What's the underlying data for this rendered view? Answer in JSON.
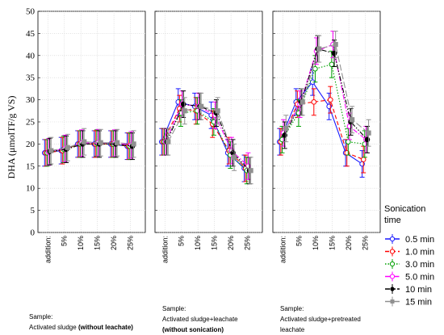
{
  "chart_data": {
    "type": "line",
    "ylabel": "DHA (μmolTF/g VS)",
    "ylim": [
      0,
      50
    ],
    "yticks": [
      0,
      5,
      10,
      15,
      20,
      25,
      30,
      35,
      40,
      45,
      50
    ],
    "categories": [
      "addition:",
      "5%",
      "10%",
      "15%",
      "20%",
      "25%"
    ],
    "grid": true,
    "legend": {
      "title": "Sonication time",
      "placement": "right"
    },
    "series_style": [
      {
        "name": "0.5 min",
        "color": "#1a1aff",
        "dash": "solid",
        "marker": "open-circle"
      },
      {
        "name": "1.0 min",
        "color": "#ff0000",
        "dash": "dashed",
        "marker": "open-circle"
      },
      {
        "name": "3.0 min",
        "color": "#00a000",
        "dash": "dotted",
        "marker": "open-circle"
      },
      {
        "name": "5.0 min",
        "color": "#ff00ff",
        "dash": "dashdot",
        "marker": "open-circle"
      },
      {
        "name": "10 min",
        "color": "#000000",
        "dash": "dashdotdot",
        "marker": "filled-circle"
      },
      {
        "name": "15 min",
        "color": "#909090",
        "dash": "longdash",
        "marker": "filled-square"
      }
    ],
    "panels": [
      {
        "caption": [
          "Sample:",
          "Activated sludge "
        ],
        "caption_bold": "(without leachate)",
        "series": [
          {
            "name": "0.5 min",
            "values": [
              18,
              18.5,
              20.0,
              20.0,
              20.0,
              19.5
            ],
            "err": [
              3,
              3,
              3,
              3,
              3,
              3
            ]
          },
          {
            "name": "1.0 min",
            "values": [
              18,
              18.5,
              20.0,
              20.0,
              20.0,
              19.5
            ],
            "err": [
              3,
              3,
              3,
              3,
              3,
              3
            ]
          },
          {
            "name": "3.0 min",
            "values": [
              18,
              18.8,
              20.0,
              20.2,
              20.0,
              19.5
            ],
            "err": [
              3,
              3,
              3,
              3,
              3,
              3
            ]
          },
          {
            "name": "5.0 min",
            "values": [
              18.2,
              19.0,
              20.2,
              20.3,
              20.2,
              19.8
            ],
            "err": [
              3,
              3,
              3,
              3,
              3,
              3
            ]
          },
          {
            "name": "10 min",
            "values": [
              18.3,
              18.8,
              20.0,
              20.0,
              20.0,
              19.5
            ],
            "err": [
              3,
              3,
              3,
              3,
              3,
              3
            ]
          },
          {
            "name": "15 min",
            "values": [
              18.5,
              19.2,
              20.5,
              20.3,
              20.3,
              20.0
            ],
            "err": [
              3,
              3,
              3,
              3,
              3,
              3
            ]
          }
        ]
      },
      {
        "caption": [
          "Sample:",
          "Activated sludge+leachate"
        ],
        "caption_bold": "(without sonication)",
        "series": [
          {
            "name": "0.5 min",
            "values": [
              20.5,
              29.5,
              28.5,
              26.5,
              18.0,
              14.5
            ],
            "err": [
              3,
              3,
              3,
              3,
              3,
              3
            ]
          },
          {
            "name": "1.0 min",
            "values": [
              20.5,
              28.0,
              27.5,
              24.5,
              18.5,
              14.5
            ],
            "err": [
              3,
              3,
              3,
              3,
              3,
              3
            ]
          },
          {
            "name": "3.0 min",
            "values": [
              20.5,
              27.0,
              27.5,
              25.0,
              17.5,
              14.0
            ],
            "err": [
              3,
              3,
              3,
              3,
              3,
              3
            ]
          },
          {
            "name": "5.0 min",
            "values": [
              20.5,
              29.0,
              28.5,
              26.5,
              18.5,
              15.0
            ],
            "err": [
              3,
              3,
              3,
              3,
              3,
              3
            ]
          },
          {
            "name": "10 min",
            "values": [
              20.5,
              29.0,
              28.5,
              27.0,
              18.0,
              14.0
            ],
            "err": [
              3,
              3,
              3,
              3,
              3,
              3
            ]
          },
          {
            "name": "15 min",
            "values": [
              20.5,
              27.5,
              28.5,
              27.5,
              17.0,
              14.0
            ],
            "err": [
              3,
              3,
              3,
              3,
              3,
              3
            ]
          }
        ]
      },
      {
        "caption": [
          "Sample:",
          "Activated sludge+pretreated",
          "leachate"
        ],
        "caption_bold": "",
        "series": [
          {
            "name": "0.5 min",
            "values": [
              20.5,
              29.5,
              34.0,
              28.5,
              18.0,
              15.5
            ],
            "err": [
              3,
              3,
              3,
              3,
              3,
              3
            ]
          },
          {
            "name": "1.0 min",
            "values": [
              20.5,
              29.0,
              29.5,
              30.0,
              18.0,
              16.5
            ],
            "err": [
              3,
              3,
              3,
              3,
              3,
              3
            ]
          },
          {
            "name": "3.0 min",
            "values": [
              21.0,
              27.0,
              37.0,
              38.0,
              20.5,
              20.0
            ],
            "err": [
              3,
              3,
              3,
              3,
              3,
              3
            ]
          },
          {
            "name": "5.0 min",
            "values": [
              22.5,
              29.0,
              41.0,
              42.5,
              24.0,
              21.0
            ],
            "err": [
              3,
              3,
              3,
              3,
              3,
              3
            ]
          },
          {
            "name": "10 min",
            "values": [
              22.0,
              29.5,
              41.5,
              40.5,
              25.0,
              21.0
            ],
            "err": [
              3,
              3,
              3,
              3,
              3,
              3
            ]
          },
          {
            "name": "15 min",
            "values": [
              23.5,
              29.5,
              41.5,
              42.5,
              25.5,
              22.5
            ],
            "err": [
              3,
              3,
              3,
              3,
              3,
              3
            ]
          }
        ]
      }
    ]
  }
}
